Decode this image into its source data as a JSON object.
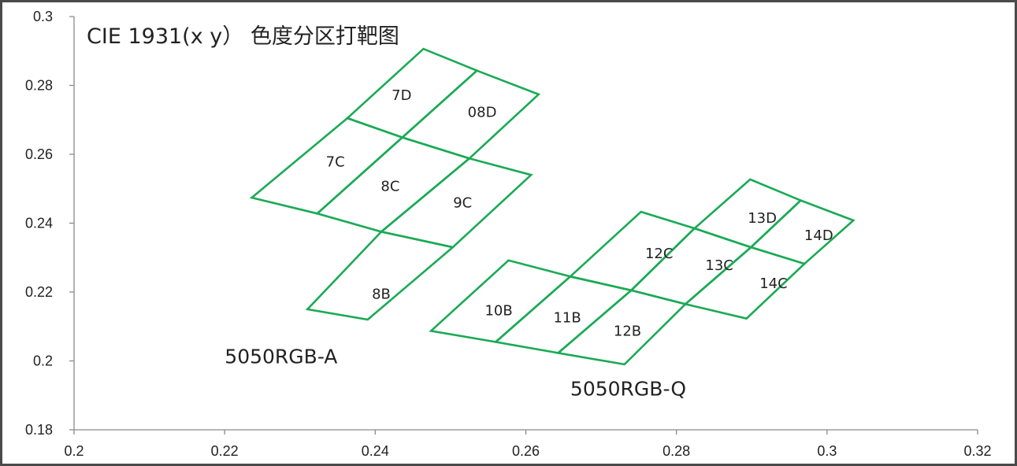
{
  "chart_data": {
    "type": "diagram",
    "title": "CIE 1931(x y） 色度分区打靶图",
    "xlim": [
      0.2,
      0.32
    ],
    "ylim": [
      0.18,
      0.3
    ],
    "x_ticks": [
      "0.2",
      "0.22",
      "0.24",
      "0.26",
      "0.28",
      "0.3",
      "0.32"
    ],
    "y_ticks": [
      "0.18",
      "0.2",
      "0.22",
      "0.24",
      "0.26",
      "0.28",
      "0.3"
    ],
    "grid": false,
    "line_color": "#1aaa55",
    "groups": [
      {
        "name": "5050RGB-A",
        "label_position": [
          0.2275,
          0.2014
        ],
        "bins": [
          {
            "label": "7D",
            "label_position": [
              0.2435,
              0.2772
            ],
            "vertices": [
              [
                0.2363,
                0.2705
              ],
              [
                0.2464,
                0.2906
              ],
              [
                0.2535,
                0.2843
              ],
              [
                0.2436,
                0.2649
              ]
            ]
          },
          {
            "label": "08D",
            "label_position": [
              0.2542,
              0.2722
            ],
            "vertices": [
              [
                0.2436,
                0.2649
              ],
              [
                0.2535,
                0.2843
              ],
              [
                0.2617,
                0.2774
              ],
              [
                0.2525,
                0.2588
              ]
            ]
          },
          {
            "label": "7C",
            "label_position": [
              0.2347,
              0.2578
            ],
            "vertices": [
              [
                0.2236,
                0.2474
              ],
              [
                0.2363,
                0.2705
              ],
              [
                0.2436,
                0.2649
              ],
              [
                0.2323,
                0.2428
              ]
            ]
          },
          {
            "label": "8C",
            "label_position": [
              0.242,
              0.2508
            ],
            "vertices": [
              [
                0.2323,
                0.2428
              ],
              [
                0.2436,
                0.2649
              ],
              [
                0.2525,
                0.2588
              ],
              [
                0.2408,
                0.2375
              ]
            ]
          },
          {
            "label": "9C",
            "label_position": [
              0.2516,
              0.246
            ],
            "vertices": [
              [
                0.2408,
                0.2375
              ],
              [
                0.2525,
                0.2588
              ],
              [
                0.2607,
                0.254
              ],
              [
                0.2503,
                0.233
              ]
            ]
          },
          {
            "label": "8B",
            "label_position": [
              0.2408,
              0.2194
            ],
            "vertices": [
              [
                0.231,
                0.215
              ],
              [
                0.2408,
                0.2375
              ],
              [
                0.2503,
                0.233
              ],
              [
                0.239,
                0.212
              ]
            ]
          }
        ]
      },
      {
        "name": "5050RGB-Q",
        "label_position": [
          0.2736,
          0.192
        ],
        "bins": [
          {
            "label": "10B",
            "label_position": [
              0.2564,
              0.2146
            ],
            "vertices": [
              [
                0.2474,
                0.2087
              ],
              [
                0.2577,
                0.2292
              ],
              [
                0.2659,
                0.2245
              ],
              [
                0.256,
                0.2055
              ]
            ]
          },
          {
            "label": "11B",
            "label_position": [
              0.2655,
              0.2126
            ],
            "vertices": [
              [
                0.256,
                0.2055
              ],
              [
                0.2659,
                0.2245
              ],
              [
                0.274,
                0.2205
              ],
              [
                0.2643,
                0.2023
              ]
            ]
          },
          {
            "label": "12B",
            "label_position": [
              0.2735,
              0.2087
            ],
            "vertices": [
              [
                0.2643,
                0.2023
              ],
              [
                0.274,
                0.2205
              ],
              [
                0.2812,
                0.2165
              ],
              [
                0.2731,
                0.199
              ]
            ]
          },
          {
            "label": "12C",
            "label_position": [
              0.2777,
              0.2312
            ],
            "vertices": [
              [
                0.2659,
                0.2245
              ],
              [
                0.2753,
                0.2433
              ],
              [
                0.2824,
                0.2385
              ],
              [
                0.274,
                0.2205
              ]
            ]
          },
          {
            "label": "13C",
            "label_position": [
              0.2857,
              0.2278
            ],
            "vertices": [
              [
                0.274,
                0.2205
              ],
              [
                0.2824,
                0.2385
              ],
              [
                0.2899,
                0.233
              ],
              [
                0.2812,
                0.2165
              ]
            ]
          },
          {
            "label": "14C",
            "label_position": [
              0.2929,
              0.2225
            ],
            "vertices": [
              [
                0.2812,
                0.2165
              ],
              [
                0.2899,
                0.233
              ],
              [
                0.297,
                0.2282
              ],
              [
                0.2893,
                0.2123
              ]
            ]
          },
          {
            "label": "13D",
            "label_position": [
              0.2914,
              0.2415
            ],
            "vertices": [
              [
                0.2824,
                0.2385
              ],
              [
                0.2898,
                0.2527
              ],
              [
                0.2965,
                0.2466
              ],
              [
                0.2899,
                0.233
              ]
            ]
          },
          {
            "label": "14D",
            "label_position": [
              0.2989,
              0.2365
            ],
            "vertices": [
              [
                0.2899,
                0.233
              ],
              [
                0.2965,
                0.2466
              ],
              [
                0.3035,
                0.2408
              ],
              [
                0.297,
                0.2282
              ]
            ]
          }
        ]
      }
    ]
  }
}
